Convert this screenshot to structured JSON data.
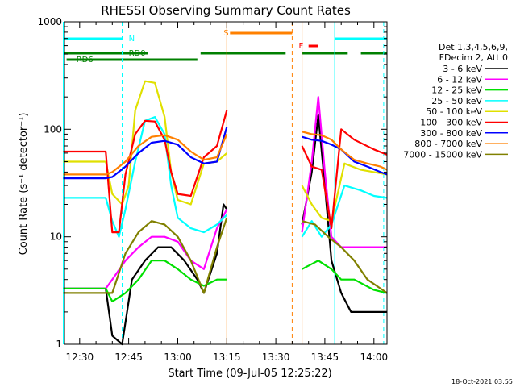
{
  "chart_data": {
    "type": "line",
    "title": "RHESSI Observing Summary Count Rates",
    "xlabel": "Start Time (09-Jul-05 12:25:22)",
    "ylabel": "Count Rate (s⁻¹ detector⁻¹)",
    "y_scale": "log",
    "ylim": [
      1,
      1000
    ],
    "xlim": [
      "12:25:22",
      "14:04:00"
    ],
    "x_ticks": [
      "12:30",
      "12:45",
      "13:00",
      "13:15",
      "13:30",
      "13:45",
      "14:00"
    ],
    "y_ticks": [
      "1",
      "10",
      "100",
      "1000"
    ],
    "timestamp": "18-Oct-2021 03:55",
    "legend": {
      "placement": "right",
      "header": [
        "Det 1,3,4,5,6,9,",
        "FDecim 2, Att 0"
      ],
      "entries": [
        {
          "label": "3 - 6 keV",
          "color": "#000000"
        },
        {
          "label": "6 - 12 keV",
          "color": "#ff00ff"
        },
        {
          "label": "12 - 25 keV",
          "color": "#00e000"
        },
        {
          "label": "25 - 50 keV",
          "color": "#00ffff"
        },
        {
          "label": "50 - 100 keV",
          "color": "#e0e000"
        },
        {
          "label": "100 - 300 keV",
          "color": "#ff0000"
        },
        {
          "label": "300 - 800 keV",
          "color": "#0000ff"
        },
        {
          "label": "800 - 7000 keV",
          "color": "#ff8000"
        },
        {
          "label": "7000 - 15000 keV",
          "color": "#808000"
        }
      ]
    },
    "flags": [
      {
        "label": "N",
        "color": "#00ffff",
        "segments": [
          [
            "12:25",
            "12:43"
          ],
          [
            "13:48",
            "14:04"
          ]
        ]
      },
      {
        "label": "RD0",
        "color": "#008000",
        "segments": [
          [
            "12:25",
            "12:51"
          ],
          [
            "13:07",
            "13:33"
          ],
          [
            "13:38",
            "13:52"
          ],
          [
            "13:56",
            "14:04"
          ]
        ]
      },
      {
        "label": "RD6",
        "color": "#008000",
        "segments": [
          [
            "12:26",
            "13:06"
          ]
        ]
      },
      {
        "label": "S",
        "color": "#ff8000",
        "segments": [
          [
            "13:16",
            "13:35"
          ]
        ]
      },
      {
        "label": "F",
        "color": "#ff0000",
        "segments": [
          [
            "13:40",
            "13:43"
          ]
        ]
      }
    ],
    "vertical_markers": [
      {
        "time": "12:25",
        "color": "#00ffff",
        "style": "solid"
      },
      {
        "time": "12:43",
        "color": "#00ffff",
        "style": "dashed"
      },
      {
        "time": "13:15",
        "color": "#ff8000",
        "style": "solid"
      },
      {
        "time": "13:35",
        "color": "#ff8000",
        "style": "dashed"
      },
      {
        "time": "13:38",
        "color": "#ff8000",
        "style": "solid"
      },
      {
        "time": "13:48",
        "color": "#00ffff",
        "style": "solid"
      },
      {
        "time": "14:03",
        "color": "#00ffff",
        "style": "dashed"
      }
    ],
    "gap": [
      "13:15",
      "13:38"
    ],
    "series": [
      {
        "name": "3 - 6 keV",
        "color": "#000000",
        "points": [
          [
            "12:25",
            3.3
          ],
          [
            "12:38",
            3.3
          ],
          [
            "12:40",
            1.2
          ],
          [
            "12:43",
            1.0
          ],
          [
            "12:46",
            4
          ],
          [
            "12:50",
            6
          ],
          [
            "12:54",
            8
          ],
          [
            "12:58",
            8
          ],
          [
            "13:02",
            6
          ],
          [
            "13:06",
            4
          ],
          [
            "13:08",
            3
          ],
          [
            "13:12",
            7
          ],
          [
            "13:14",
            20
          ],
          [
            "13:15",
            18
          ],
          [
            "13:38",
            13
          ],
          [
            "13:41",
            40
          ],
          [
            "13:43",
            135
          ],
          [
            "13:45",
            30
          ],
          [
            "13:47",
            6
          ],
          [
            "13:50",
            3
          ],
          [
            "13:53",
            2
          ],
          [
            "13:57",
            2
          ],
          [
            "14:04",
            2
          ]
        ]
      },
      {
        "name": "6 - 12 keV",
        "color": "#ff00ff",
        "points": [
          [
            "12:25",
            3.3
          ],
          [
            "12:38",
            3.3
          ],
          [
            "12:40",
            4
          ],
          [
            "12:44",
            6
          ],
          [
            "12:48",
            8
          ],
          [
            "12:52",
            10
          ],
          [
            "12:56",
            10
          ],
          [
            "13:00",
            9
          ],
          [
            "13:04",
            6
          ],
          [
            "13:08",
            5
          ],
          [
            "13:12",
            12
          ],
          [
            "13:15",
            18
          ],
          [
            "13:38",
            11
          ],
          [
            "13:41",
            50
          ],
          [
            "13:43",
            200
          ],
          [
            "13:45",
            40
          ],
          [
            "13:47",
            10
          ],
          [
            "13:50",
            8
          ],
          [
            "13:54",
            8
          ],
          [
            "14:04",
            8
          ]
        ]
      },
      {
        "name": "12 - 25 keV",
        "color": "#00e000",
        "points": [
          [
            "12:25",
            3.3
          ],
          [
            "12:38",
            3.3
          ],
          [
            "12:40",
            2.5
          ],
          [
            "12:44",
            3
          ],
          [
            "12:48",
            4
          ],
          [
            "12:52",
            6
          ],
          [
            "12:56",
            6
          ],
          [
            "13:00",
            5
          ],
          [
            "13:04",
            4
          ],
          [
            "13:08",
            3.5
          ],
          [
            "13:12",
            4
          ],
          [
            "13:15",
            4
          ],
          [
            "13:38",
            5
          ],
          [
            "13:43",
            6
          ],
          [
            "13:47",
            5
          ],
          [
            "13:50",
            4
          ],
          [
            "13:54",
            4
          ],
          [
            "14:00",
            3.2
          ],
          [
            "14:04",
            3
          ]
        ]
      },
      {
        "name": "25 - 50 keV",
        "color": "#00ffff",
        "points": [
          [
            "12:25",
            23
          ],
          [
            "12:38",
            23
          ],
          [
            "12:40",
            14
          ],
          [
            "12:42",
            10
          ],
          [
            "12:44",
            18
          ],
          [
            "12:47",
            50
          ],
          [
            "12:50",
            120
          ],
          [
            "12:53",
            130
          ],
          [
            "12:56",
            90
          ],
          [
            "12:58",
            30
          ],
          [
            "13:00",
            15
          ],
          [
            "13:04",
            12
          ],
          [
            "13:08",
            11
          ],
          [
            "13:12",
            13
          ],
          [
            "13:15",
            16
          ],
          [
            "13:38",
            10
          ],
          [
            "13:41",
            14
          ],
          [
            "13:44",
            10
          ],
          [
            "13:47",
            13
          ],
          [
            "13:51",
            30
          ],
          [
            "13:56",
            27
          ],
          [
            "14:00",
            24
          ],
          [
            "14:04",
            23
          ]
        ]
      },
      {
        "name": "50 - 100 keV",
        "color": "#e0e000",
        "points": [
          [
            "12:25",
            50
          ],
          [
            "12:38",
            50
          ],
          [
            "12:40",
            25
          ],
          [
            "12:43",
            20
          ],
          [
            "12:45",
            30
          ],
          [
            "12:47",
            150
          ],
          [
            "12:50",
            280
          ],
          [
            "12:53",
            270
          ],
          [
            "12:56",
            130
          ],
          [
            "12:58",
            40
          ],
          [
            "13:00",
            22
          ],
          [
            "13:04",
            20
          ],
          [
            "13:08",
            48
          ],
          [
            "13:12",
            50
          ],
          [
            "13:15",
            60
          ],
          [
            "13:38",
            30
          ],
          [
            "13:41",
            20
          ],
          [
            "13:44",
            15
          ],
          [
            "13:47",
            14
          ],
          [
            "13:51",
            48
          ],
          [
            "13:56",
            42
          ],
          [
            "14:00",
            40
          ],
          [
            "14:04",
            38
          ]
        ]
      },
      {
        "name": "100 - 300 keV",
        "color": "#ff0000",
        "points": [
          [
            "12:25",
            62
          ],
          [
            "12:38",
            62
          ],
          [
            "12:40",
            11
          ],
          [
            "12:42",
            11
          ],
          [
            "12:44",
            38
          ],
          [
            "12:47",
            90
          ],
          [
            "12:50",
            120
          ],
          [
            "12:53",
            118
          ],
          [
            "12:56",
            80
          ],
          [
            "12:58",
            40
          ],
          [
            "13:00",
            25
          ],
          [
            "13:04",
            24
          ],
          [
            "13:08",
            55
          ],
          [
            "13:12",
            70
          ],
          [
            "13:15",
            150
          ],
          [
            "13:38",
            70
          ],
          [
            "13:41",
            45
          ],
          [
            "13:44",
            42
          ],
          [
            "13:47",
            12
          ],
          [
            "13:50",
            100
          ],
          [
            "13:54",
            80
          ],
          [
            "14:00",
            65
          ],
          [
            "14:04",
            58
          ]
        ]
      },
      {
        "name": "300 - 800 keV",
        "color": "#0000ff",
        "points": [
          [
            "12:25",
            35
          ],
          [
            "12:38",
            35
          ],
          [
            "12:40",
            36
          ],
          [
            "12:44",
            45
          ],
          [
            "12:48",
            60
          ],
          [
            "12:52",
            75
          ],
          [
            "12:56",
            78
          ],
          [
            "13:00",
            72
          ],
          [
            "13:04",
            55
          ],
          [
            "13:08",
            48
          ],
          [
            "13:12",
            50
          ],
          [
            "13:15",
            105
          ],
          [
            "13:38",
            85
          ],
          [
            "13:41",
            80
          ],
          [
            "13:44",
            78
          ],
          [
            "13:47",
            72
          ],
          [
            "13:50",
            65
          ],
          [
            "13:54",
            50
          ],
          [
            "13:58",
            45
          ],
          [
            "14:02",
            40
          ],
          [
            "14:04",
            38
          ]
        ]
      },
      {
        "name": "800 - 7000 keV",
        "color": "#ff8000",
        "points": [
          [
            "12:25",
            38
          ],
          [
            "12:38",
            38
          ],
          [
            "12:40",
            40
          ],
          [
            "12:44",
            50
          ],
          [
            "12:48",
            70
          ],
          [
            "12:52",
            85
          ],
          [
            "12:56",
            88
          ],
          [
            "13:00",
            80
          ],
          [
            "13:04",
            62
          ],
          [
            "13:08",
            52
          ],
          [
            "13:12",
            55
          ],
          [
            "13:15",
            90
          ],
          [
            "13:38",
            95
          ],
          [
            "13:41",
            90
          ],
          [
            "13:44",
            88
          ],
          [
            "13:47",
            80
          ],
          [
            "13:50",
            65
          ],
          [
            "13:54",
            52
          ],
          [
            "13:58",
            48
          ],
          [
            "14:02",
            45
          ],
          [
            "14:04",
            42
          ]
        ]
      },
      {
        "name": "7000 - 15000 keV",
        "color": "#808000",
        "points": [
          [
            "12:25",
            3
          ],
          [
            "12:38",
            3
          ],
          [
            "12:40",
            3
          ],
          [
            "12:44",
            7
          ],
          [
            "12:48",
            11
          ],
          [
            "12:52",
            14
          ],
          [
            "12:56",
            13
          ],
          [
            "13:00",
            10
          ],
          [
            "13:04",
            6
          ],
          [
            "13:08",
            3
          ],
          [
            "13:12",
            8
          ],
          [
            "13:15",
            15
          ],
          [
            "13:38",
            14
          ],
          [
            "13:42",
            13
          ],
          [
            "13:46",
            10
          ],
          [
            "13:50",
            8
          ],
          [
            "13:54",
            6
          ],
          [
            "13:58",
            4
          ],
          [
            "14:04",
            3
          ]
        ]
      }
    ]
  }
}
